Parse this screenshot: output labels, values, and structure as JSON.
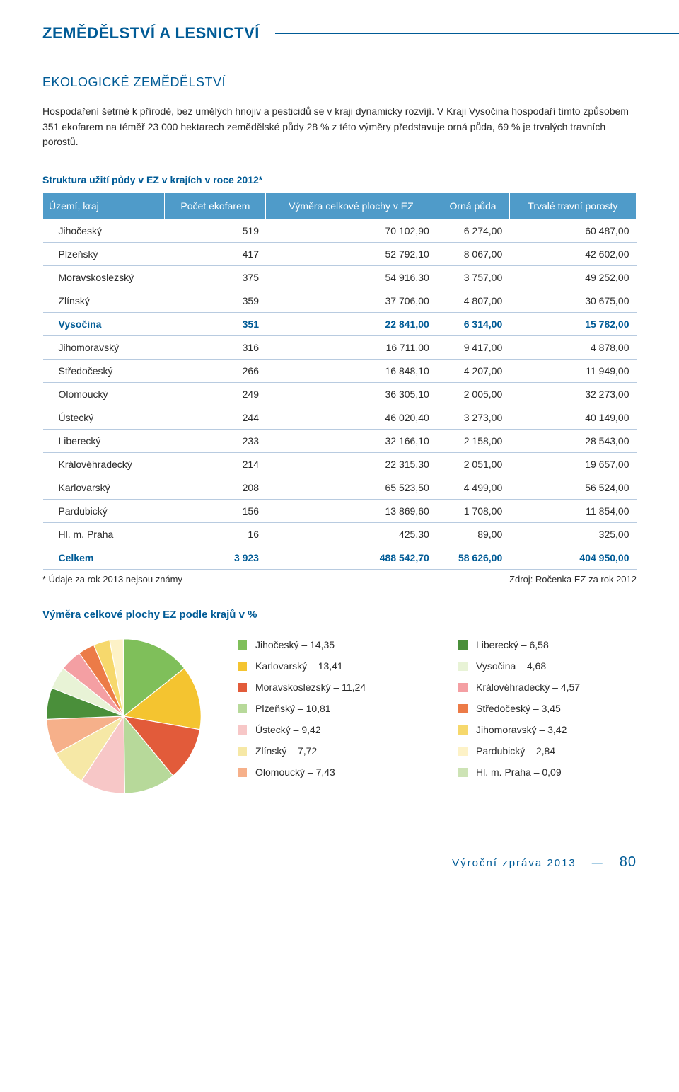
{
  "header": {
    "breadcrumb": "ZEMĚDĚLSTVÍ A LESNICTVÍ",
    "section_title": "EKOLOGICKÉ ZEMĚDĚLSTVÍ",
    "intro": "Hospodaření šetrné k přírodě, bez umělých hnojiv a pesticidů se v kraji dynamicky rozvíjí. V Kraji Vysočina hospodaří tímto způsobem 351 ekofarem na téměř 23 000 hektarech zemědělské půdy 28 % z této výměry představuje orná půda, 69 % je trvalých travních porostů."
  },
  "table": {
    "caption": "Struktura užití půdy v EZ v krajích v roce 2012*",
    "columns": [
      "Území, kraj",
      "Počet ekofarem",
      "Výměra celkové plochy v EZ",
      "Orná půda",
      "Trvalé travní porosty"
    ],
    "highlight_region": "Vysočina",
    "total_label": "Celkem",
    "rows": [
      [
        "Jihočeský",
        "519",
        "70 102,90",
        "6 274,00",
        "60 487,00"
      ],
      [
        "Plzeňský",
        "417",
        "52 792,10",
        "8 067,00",
        "42 602,00"
      ],
      [
        "Moravskoslezský",
        "375",
        "54 916,30",
        "3 757,00",
        "49 252,00"
      ],
      [
        "Zlínský",
        "359",
        "37 706,00",
        "4 807,00",
        "30 675,00"
      ],
      [
        "Vysočina",
        "351",
        "22 841,00",
        "6 314,00",
        "15 782,00"
      ],
      [
        "Jihomoravský",
        "316",
        "16 711,00",
        "9 417,00",
        "4 878,00"
      ],
      [
        "Středočeský",
        "266",
        "16 848,10",
        "4 207,00",
        "11 949,00"
      ],
      [
        "Olomoucký",
        "249",
        "36 305,10",
        "2 005,00",
        "32 273,00"
      ],
      [
        "Ústecký",
        "244",
        "46 020,40",
        "3 273,00",
        "40 149,00"
      ],
      [
        "Liberecký",
        "233",
        "32 166,10",
        "2 158,00",
        "28 543,00"
      ],
      [
        "Královéhradecký",
        "214",
        "22 315,30",
        "2 051,00",
        "19 657,00"
      ],
      [
        "Karlovarský",
        "208",
        "65 523,50",
        "4 499,00",
        "56 524,00"
      ],
      [
        "Pardubický",
        "156",
        "13 869,60",
        "1 708,00",
        "11 854,00"
      ],
      [
        "Hl. m. Praha",
        "16",
        "425,30",
        "89,00",
        "325,00"
      ],
      [
        "Celkem",
        "3 923",
        "488 542,70",
        "58 626,00",
        "404 950,00"
      ]
    ],
    "foot_left": "* Údaje za rok 2013 nejsou známy",
    "foot_right": "Zdroj: Ročenka EZ za rok 2012"
  },
  "pie": {
    "title": "Výměra celkové plochy EZ podle krajů v %",
    "type": "pie",
    "background_color": "#ffffff",
    "slices": [
      {
        "label": "Jihočeský – 14,35",
        "value": 14.35,
        "color": "#7fbf5a"
      },
      {
        "label": "Karlovarský – 13,41",
        "value": 13.41,
        "color": "#f4c430"
      },
      {
        "label": "Moravskoslezský – 11,24",
        "value": 11.24,
        "color": "#e25b3a"
      },
      {
        "label": "Plzeňský – 10,81",
        "value": 10.81,
        "color": "#b7d99a"
      },
      {
        "label": "Ústecký – 9,42",
        "value": 9.42,
        "color": "#f7c7c7"
      },
      {
        "label": "Zlínský – 7,72",
        "value": 7.72,
        "color": "#f6e8a6"
      },
      {
        "label": "Olomoucký – 7,43",
        "value": 7.43,
        "color": "#f6b08a"
      },
      {
        "label": "Liberecký – 6,58",
        "value": 6.58,
        "color": "#4a8f3a"
      },
      {
        "label": "Vysočina – 4,68",
        "value": 4.68,
        "color": "#e8f3d6"
      },
      {
        "label": "Královéhradecký – 4,57",
        "value": 4.57,
        "color": "#f49fa3"
      },
      {
        "label": "Středočeský – 3,45",
        "value": 3.45,
        "color": "#ec7b47"
      },
      {
        "label": "Jihomoravský – 3,42",
        "value": 3.42,
        "color": "#f6d86c"
      },
      {
        "label": "Pardubický – 2,84",
        "value": 2.84,
        "color": "#fdf2c7"
      },
      {
        "label": "Hl. m. Praha – 0,09",
        "value": 0.09,
        "color": "#cde3b5"
      }
    ],
    "legend_split": 7
  },
  "footer": {
    "label": "Výroční zpráva 2013",
    "page": "80"
  }
}
